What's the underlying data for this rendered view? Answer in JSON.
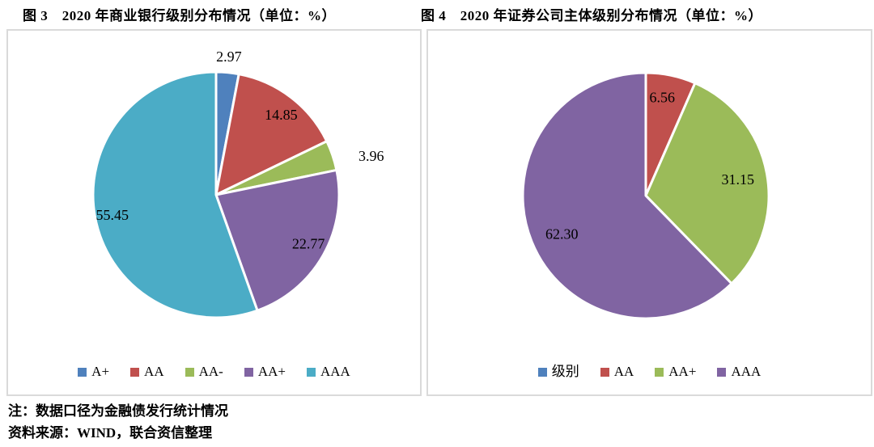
{
  "colors": {
    "blue": "#4F81BD",
    "red": "#C0504D",
    "green": "#9BBB59",
    "purple": "#8064A2",
    "cyan": "#4BACC6",
    "panel_border": "#DADADA",
    "label_text": "#000000"
  },
  "footnotes": {
    "note": "注：数据口径为金融债发行统计情况",
    "source": "资料来源：WIND，联合资信整理"
  },
  "chart_data": [
    {
      "type": "pie",
      "title": "图 3　2020 年商业银行级别分布情况（单位：%）",
      "unit": "%",
      "start_angle_deg": 0,
      "direction": "clockwise",
      "legend_position": "bottom",
      "categories": [
        "A+",
        "AA",
        "AA-",
        "AA+",
        "AAA"
      ],
      "values": [
        2.97,
        14.85,
        3.96,
        22.77,
        55.45
      ],
      "slices": [
        {
          "category": "A+",
          "value": 2.97,
          "label": "2.97",
          "color": "blue",
          "label_placement": "outside",
          "label_angle_deg": 5.3,
          "label_radius": 1.13
        },
        {
          "category": "AA",
          "value": 14.85,
          "label": "14.85",
          "color": "red",
          "label_placement": "inside",
          "label_angle_deg": 39,
          "label_radius": 0.84
        },
        {
          "category": "AA-",
          "value": 3.96,
          "label": "3.96",
          "color": "green",
          "label_placement": "outside",
          "label_angle_deg": 76,
          "label_radius": 1.3
        },
        {
          "category": "AA+",
          "value": 22.77,
          "label": "22.77",
          "color": "purple",
          "label_placement": "inside",
          "label_angle_deg": 118,
          "label_radius": 0.85
        },
        {
          "category": "AAA",
          "value": 55.45,
          "label": "55.45",
          "color": "cyan",
          "label_placement": "inside",
          "label_angle_deg": 259,
          "label_radius": 0.86
        }
      ],
      "legend": [
        {
          "label": "A+",
          "color": "blue"
        },
        {
          "label": "AA",
          "color": "red"
        },
        {
          "label": "AA-",
          "color": "green"
        },
        {
          "label": "AA+",
          "color": "purple"
        },
        {
          "label": "AAA",
          "color": "cyan"
        }
      ]
    },
    {
      "type": "pie",
      "title": "图 4　2020 年证券公司主体级别分布情况（单位：%）",
      "unit": "%",
      "start_angle_deg": 0,
      "direction": "clockwise",
      "legend_position": "bottom",
      "categories": [
        "级别",
        "AA",
        "AA+",
        "AAA"
      ],
      "values": [
        0,
        6.56,
        31.15,
        62.3
      ],
      "slices": [
        {
          "category": "级别",
          "value": 0,
          "label": "",
          "color": "blue",
          "label_placement": "none",
          "label_angle_deg": 0,
          "label_radius": 0
        },
        {
          "category": "AA",
          "value": 6.56,
          "label": "6.56",
          "color": "red",
          "label_placement": "inside",
          "label_angle_deg": 9.5,
          "label_radius": 0.81
        },
        {
          "category": "AA+",
          "value": 31.15,
          "label": "31.15",
          "color": "green",
          "label_placement": "inside",
          "label_angle_deg": 80,
          "label_radius": 0.76
        },
        {
          "category": "AAA",
          "value": 62.3,
          "label": "62.30",
          "color": "purple",
          "label_placement": "inside",
          "label_angle_deg": 245.5,
          "label_radius": 0.75
        }
      ],
      "legend": [
        {
          "label": "级别",
          "color": "blue"
        },
        {
          "label": "AA",
          "color": "red"
        },
        {
          "label": "AA+",
          "color": "green"
        },
        {
          "label": "AAA",
          "color": "purple"
        }
      ]
    }
  ]
}
